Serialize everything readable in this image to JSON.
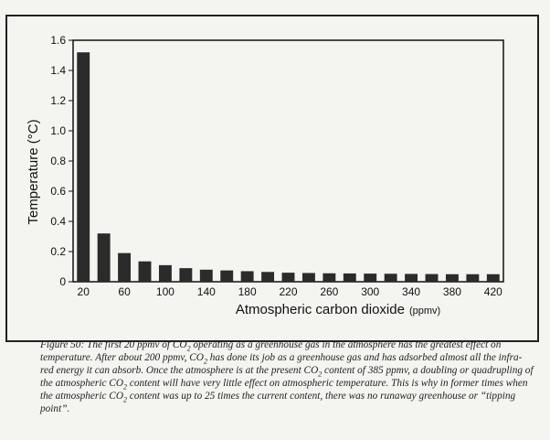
{
  "chart_data": {
    "type": "bar",
    "xlabel": "Atmospheric carbon dioxide",
    "xlabel_unit": "(ppmv)",
    "ylabel": "Temperature (°C)",
    "ylim": [
      0,
      1.6
    ],
    "yticks": [
      "0",
      "0.2",
      "0.4",
      "0.6",
      "0.8",
      "1.0",
      "1.2",
      "1.4",
      "1.6"
    ],
    "categories": [
      20,
      40,
      60,
      80,
      100,
      120,
      140,
      160,
      180,
      200,
      220,
      240,
      260,
      280,
      300,
      320,
      340,
      360,
      380,
      400,
      420
    ],
    "x_tick_labels": [
      "20",
      "60",
      "100",
      "140",
      "180",
      "220",
      "260",
      "300",
      "340",
      "380",
      "420"
    ],
    "values": [
      1.52,
      0.32,
      0.19,
      0.135,
      0.11,
      0.09,
      0.08,
      0.075,
      0.07,
      0.065,
      0.06,
      0.058,
      0.056,
      0.055,
      0.054,
      0.053,
      0.052,
      0.051,
      0.05,
      0.05,
      0.05
    ],
    "bar_color": "#2b2b2b",
    "grid": false
  },
  "caption": {
    "segments": [
      "Figure 50: The first 20 ppmv of CO",
      "2",
      " operating as a greenhouse gas in the atmosphere has the greatest effect on temperature. After about 200 ppmv, CO",
      "2",
      " has done its job as a greenhouse gas and has adsorbed almost all the infra-red energy it can absorb. Once the atmosphere is at the present CO",
      "2",
      " content of 385 ppmv, a doubling or quadrupling of the atmospheric CO",
      "2",
      " content will have very little effect on atmospheric temperature. This is why in former times when the atmospheric CO",
      "2",
      " content was up to 25 times the current content, there was no runaway greenhouse or “tipping point”."
    ]
  }
}
